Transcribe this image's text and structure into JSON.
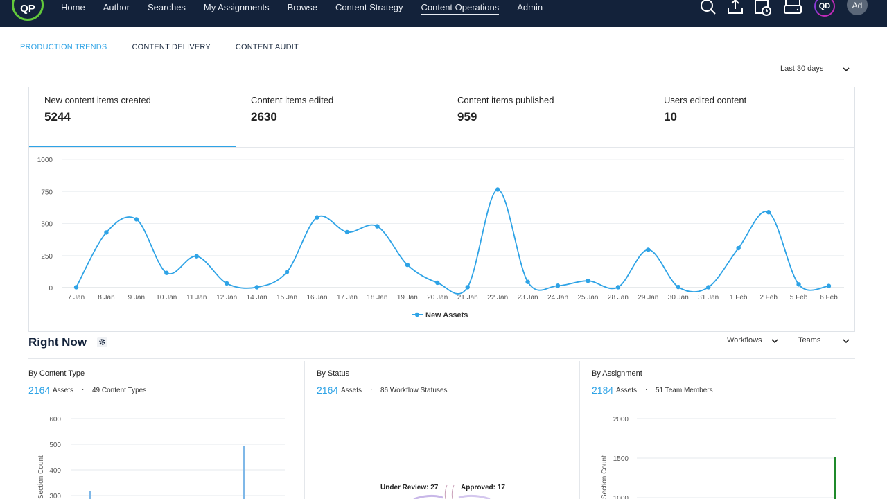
{
  "nav": {
    "logo": "QP",
    "items": [
      "Home",
      "Author",
      "Searches",
      "My Assignments",
      "Browse",
      "Content Strategy",
      "Content Operations",
      "Admin"
    ],
    "active": "Content Operations",
    "user_initials": "QD",
    "avatar": "Ad",
    "icons": [
      "search-icon",
      "upload-icon",
      "calendar-clock-icon",
      "drive-icon"
    ]
  },
  "subtabs": [
    "PRODUCTION TRENDS",
    "CONTENT DELIVERY",
    "CONTENT AUDIT"
  ],
  "range": {
    "label": "Last 30 days"
  },
  "metrics": [
    {
      "label": "New content items created",
      "value": "5244"
    },
    {
      "label": "Content items edited",
      "value": "2630"
    },
    {
      "label": "Content items published",
      "value": "959"
    },
    {
      "label": "Users edited content",
      "value": "10"
    }
  ],
  "chart_data": {
    "type": "line",
    "categories": [
      "7 Jan",
      "8 Jan",
      "9 Jan",
      "10 Jan",
      "11 Jan",
      "12 Jan",
      "14 Jan",
      "15 Jan",
      "16 Jan",
      "17 Jan",
      "18 Jan",
      "19 Jan",
      "20 Jan",
      "21 Jan",
      "22 Jan",
      "23 Jan",
      "24 Jan",
      "25 Jan",
      "28 Jan",
      "29 Jan",
      "30 Jan",
      "31 Jan",
      "1 Feb",
      "2 Feb",
      "5 Feb",
      "6 Feb"
    ],
    "series": [
      {
        "name": "New Assets",
        "values": [
          3,
          430,
          533,
          115,
          245,
          33,
          3,
          122,
          548,
          433,
          478,
          178,
          38,
          3,
          765,
          45,
          15,
          53,
          3,
          295,
          5,
          3,
          308,
          588,
          25,
          13
        ]
      }
    ],
    "y_ticks": [
      0,
      250,
      500,
      750,
      1000
    ],
    "ylim": [
      0,
      1000
    ],
    "legend": "bottom",
    "grid": true,
    "color": "#2ea3e6"
  },
  "right_now": {
    "title": "Right Now",
    "filters": [
      "Workflows",
      "Teams"
    ],
    "panels": [
      {
        "title": "By Content Type",
        "count": "2164",
        "count_label": "Assets",
        "sub": "49 Content Types",
        "y_ticks": [
          "600",
          "500",
          "400",
          "300"
        ],
        "y_label": "Section Count"
      },
      {
        "title": "By Status",
        "count": "2164",
        "count_label": "Assets",
        "sub": "86 Workflow Statuses",
        "slice_labels": [
          "Under Review: 27",
          "Approved: 17"
        ]
      },
      {
        "title": "By Assignment",
        "count": "2184",
        "count_label": "Assets",
        "sub": "51 Team Members",
        "y_ticks": [
          "2000",
          "1500",
          "1000"
        ],
        "y_label": "Section Count"
      }
    ]
  }
}
